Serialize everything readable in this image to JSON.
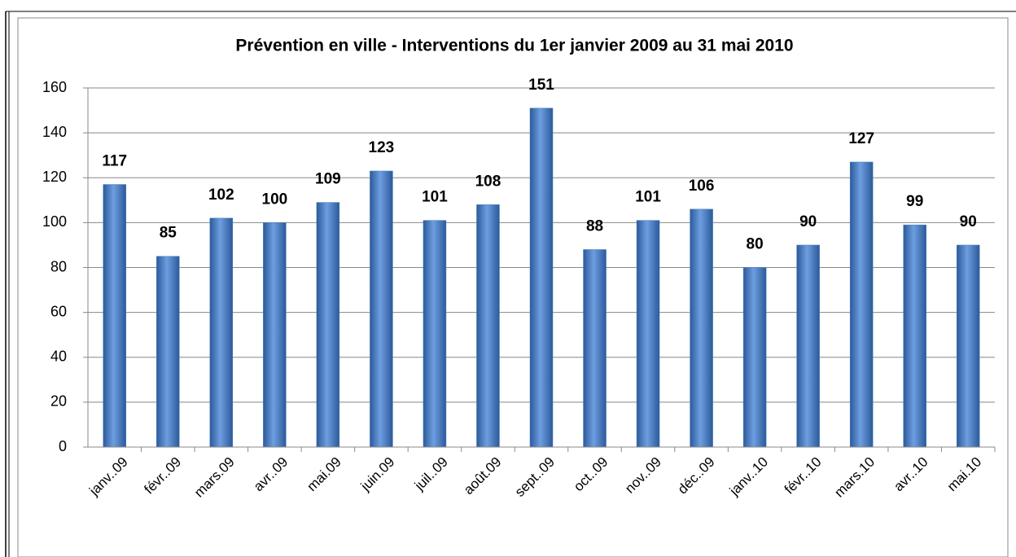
{
  "chart_data": {
    "type": "bar",
    "title": "Prévention en ville - Interventions du 1er janvier 2009 au 31 mai 2010",
    "categories": [
      "janv..09",
      "févr..09",
      "mars.09",
      "avr..09",
      "mai.09",
      "juin.09",
      "juil..09",
      "août.09",
      "sept..09",
      "oct..09",
      "nov..09",
      "déc..09",
      "janv..10",
      "févr..10",
      "mars.10",
      "avr..10",
      "mai.10"
    ],
    "values": [
      117,
      85,
      102,
      100,
      109,
      123,
      101,
      108,
      151,
      88,
      101,
      106,
      80,
      90,
      127,
      99,
      90
    ],
    "color": "#4a7ebb",
    "ylim": [
      0,
      160
    ],
    "yticks": [
      0,
      20,
      40,
      60,
      80,
      100,
      120,
      140,
      160
    ],
    "grid": true
  }
}
